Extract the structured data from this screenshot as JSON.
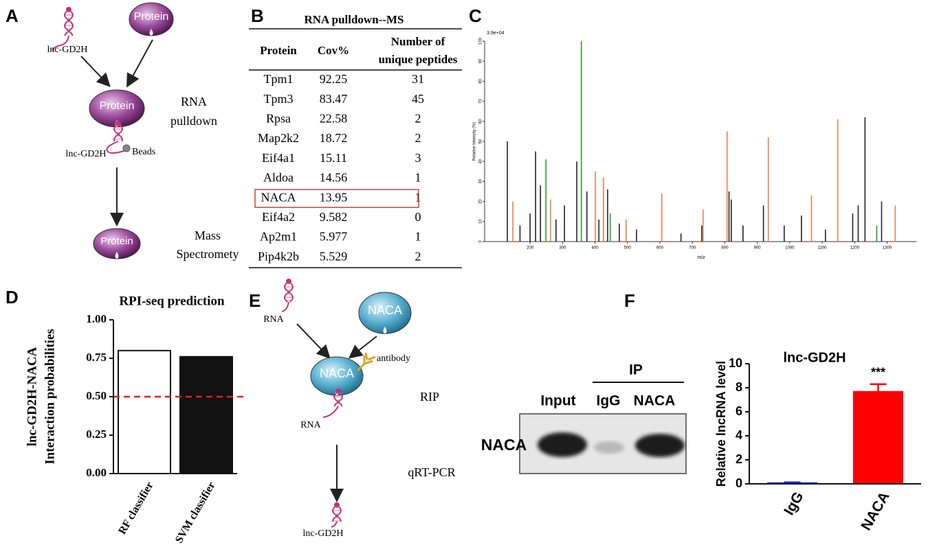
{
  "panel_labels": [
    "A",
    "B",
    "C",
    "D",
    "E",
    "F"
  ],
  "diagram_a": {
    "rna_top": "lnc-GD2H",
    "protein_top": "Protein",
    "protein_mid": "Protein",
    "rna_mid": "lnc-GD2H",
    "beads": "Beads",
    "step1": [
      "RNA",
      "pulldown"
    ],
    "protein_bottom": "Protein",
    "step2": [
      "Mass",
      "Spectromety"
    ]
  },
  "table_b": {
    "title": "RNA pulldown--MS",
    "headers": [
      [
        "Protein"
      ],
      [
        "Cov%"
      ],
      [
        "Number of",
        "unique peptides"
      ]
    ],
    "rows": [
      [
        "Tpm1",
        "92.25",
        "31"
      ],
      [
        "Tpm3",
        "83.47",
        "45"
      ],
      [
        "Rpsa",
        "22.58",
        "2"
      ],
      [
        "Map2k2",
        "18.72",
        "2"
      ],
      [
        "Eif4a1",
        "15.11",
        "3"
      ],
      [
        "Aldoa",
        "14.56",
        "1"
      ],
      [
        "NACA",
        "13.95",
        "1"
      ],
      [
        "Eif4a2",
        "9.582",
        "0"
      ],
      [
        "Ap2m1",
        "5.977",
        "1"
      ],
      [
        "Pip4k2b",
        "5.529",
        "2"
      ]
    ],
    "highlighted_row": 6,
    "highlight_color": "#d04040"
  },
  "chart_data": [
    {
      "type": "stem",
      "annotation": "3.9e+04",
      "ylabel": "Relative Intensity (%)",
      "xlabel": "m/z",
      "xlim": [
        60,
        1390
      ],
      "ylim": [
        0,
        100
      ],
      "xticks": [
        200,
        300,
        400,
        500,
        600,
        700,
        800,
        900,
        1000,
        1100,
        1200,
        1300
      ],
      "yticks": [
        0,
        10,
        20,
        30,
        40,
        50,
        60,
        70,
        80,
        90,
        100
      ],
      "series": [
        {
          "color": "#222222",
          "x": [
            130,
            169,
            200,
            217,
            232,
            280,
            306,
            344,
            375,
            412,
            439,
            475,
            528,
            665,
            729,
            813,
            820,
            856,
            919,
            983,
            1036,
            1110,
            1194,
            1211,
            1232,
            1283
          ],
          "values": [
            50,
            8,
            14,
            45,
            28,
            11,
            18,
            40,
            25,
            11,
            26,
            9,
            6,
            4,
            8,
            25,
            21,
            8,
            18,
            8,
            13,
            6,
            14,
            18,
            62,
            20
          ]
        },
        {
          "color": "#2a9a2a",
          "x": [
            249,
            358,
            447,
            1268
          ],
          "values": [
            41,
            100,
            14,
            8
          ]
        },
        {
          "color": "#e8804a",
          "x": [
            147,
            263,
            401,
            426,
            496,
            606,
            733,
            807,
            934,
            1067,
            1148,
            1325
          ],
          "values": [
            20,
            21,
            35,
            32,
            11,
            24,
            16,
            55,
            52,
            23,
            61,
            18
          ]
        }
      ]
    },
    {
      "type": "bar",
      "title": "RPI-seq prediction",
      "ylabel": [
        "lnc-GD2H-NACA",
        "Interaction probabilities"
      ],
      "categories": [
        "RF classifier",
        "SVM classifier"
      ],
      "values": [
        0.8,
        0.76
      ],
      "colors": [
        "#ffffff",
        "#111111"
      ],
      "edgecolor": "#111111",
      "ylim": [
        0,
        1
      ],
      "yticks": [
        {
          "value": 0,
          "label": "0.00"
        },
        {
          "value": 0.25,
          "label": "0.25"
        },
        {
          "value": 0.5,
          "label": "0.50"
        },
        {
          "value": 0.75,
          "label": "0.75"
        },
        {
          "value": 1,
          "label": "1.00"
        }
      ],
      "threshold": {
        "value": 0.5,
        "color": "#e02020"
      }
    },
    {
      "type": "bar",
      "title": "lnc-GD2H",
      "ylabel": "Relative lncRNA level",
      "categories": [
        "IgG",
        "NACA"
      ],
      "values": [
        0.1,
        7.7
      ],
      "errors": [
        0.03,
        0.6
      ],
      "colors": [
        "#1a1aff",
        "#ff0000"
      ],
      "value_annotations": [
        null,
        "***"
      ],
      "ylim": [
        0,
        10
      ],
      "yticks": [
        0,
        2,
        4,
        6,
        8,
        10
      ]
    }
  ],
  "diagram_e": {
    "rna_top": "RNA",
    "protein_top": "NACA",
    "protein_mid": "NACA",
    "antibody": "antibody",
    "rna_mid": "RNA",
    "step1": "RIP",
    "step2": "qRT-PCR",
    "rna_bottom": "lnc-GD2H"
  },
  "blot_f": {
    "ip": "IP",
    "lanes": [
      "Input",
      "IgG",
      "NACA"
    ],
    "protein": "NACA"
  }
}
